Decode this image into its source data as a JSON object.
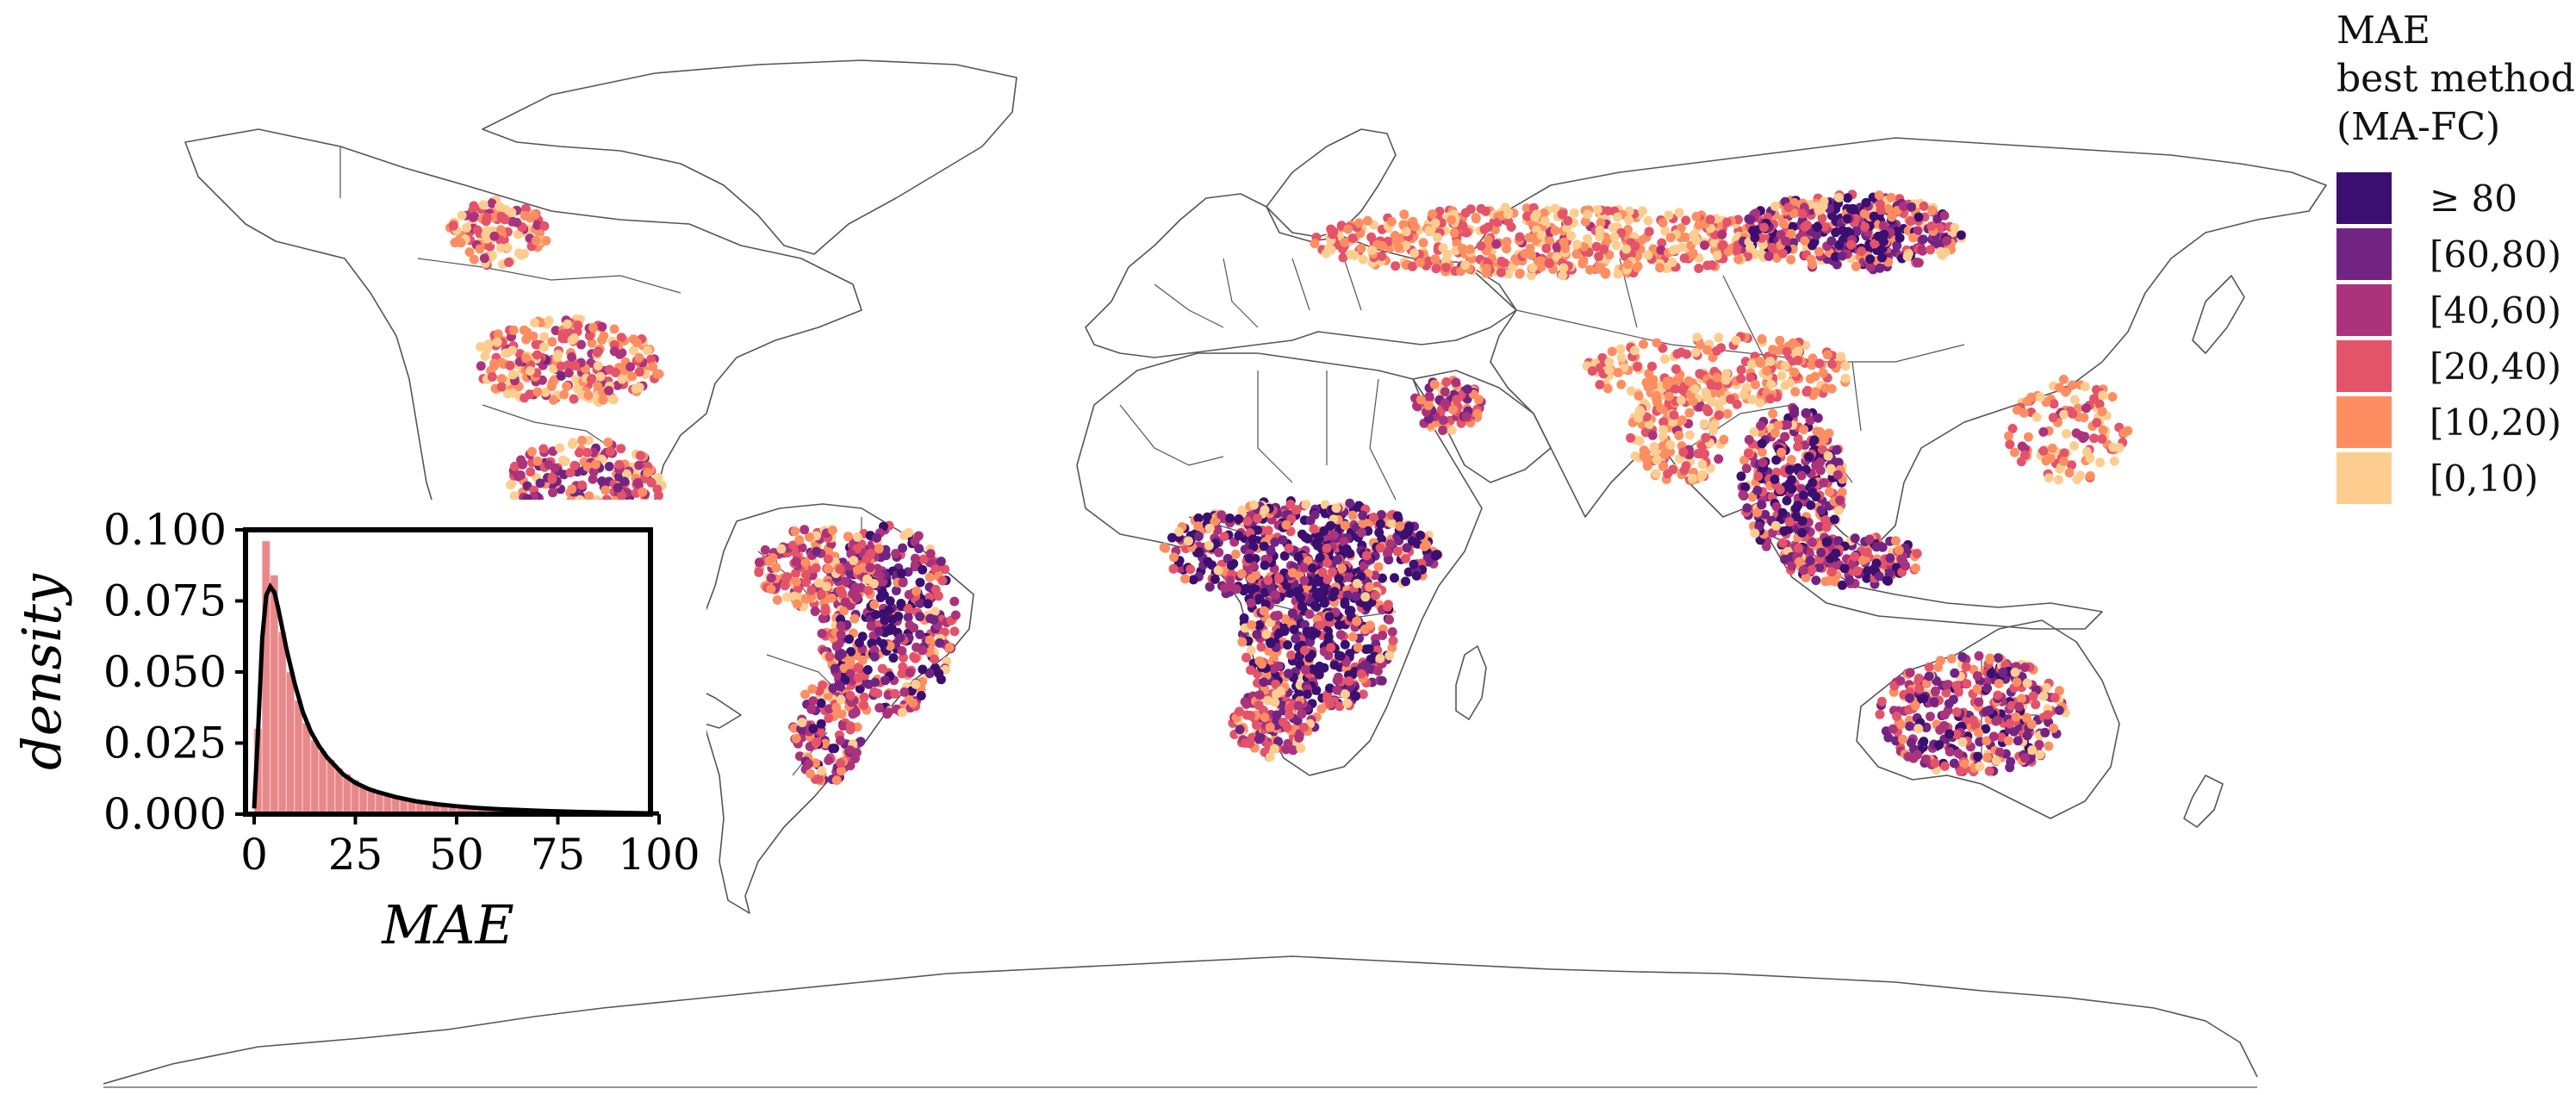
{
  "legend": {
    "title_lines": [
      "MAE",
      "best method",
      "(MA-FC)"
    ],
    "items": [
      {
        "label": "≥ 80",
        "color": "#3b0f70"
      },
      {
        "label": "[60,80)",
        "color": "#722483"
      },
      {
        "label": "[40,60)",
        "color": "#ab337c"
      },
      {
        "label": "[20,40)",
        "color": "#e3536a"
      },
      {
        "label": "[10,20)",
        "color": "#fc8e62"
      },
      {
        "label": "[0,10)",
        "color": "#fdcd90"
      }
    ]
  },
  "chart_data": {
    "type": "histogram",
    "xlabel": "MAE",
    "ylabel": "density",
    "xlim": [
      0,
      100
    ],
    "ylim": [
      0,
      0.1
    ],
    "x_ticks": [
      "0",
      "25",
      "50",
      "75",
      "100"
    ],
    "y_ticks": [
      "0.000",
      "0.025",
      "0.050",
      "0.075",
      "0.100"
    ],
    "bar_color": "#e8888b",
    "line_color": "#000000",
    "bins": {
      "width": 2,
      "starts": [
        0,
        2,
        4,
        6,
        8,
        10,
        12,
        14,
        16,
        18,
        20,
        22,
        24,
        26,
        28,
        30,
        32,
        34,
        36,
        38,
        40,
        42,
        44,
        46,
        48,
        50,
        55,
        60,
        65,
        70,
        75,
        80,
        85,
        90,
        95
      ],
      "density": [
        0.03,
        0.096,
        0.084,
        0.064,
        0.05,
        0.04,
        0.032,
        0.026,
        0.022,
        0.019,
        0.016,
        0.014,
        0.012,
        0.01,
        0.009,
        0.008,
        0.007,
        0.006,
        0.005,
        0.0045,
        0.004,
        0.0035,
        0.003,
        0.0028,
        0.0025,
        0.002,
        0.0016,
        0.0012,
        0.001,
        0.0008,
        0.0007,
        0.0005,
        0.0004,
        0.0003,
        0.0002
      ]
    },
    "kde": {
      "x": [
        0,
        1,
        2,
        3,
        4,
        5,
        6,
        7,
        8,
        10,
        12,
        14,
        16,
        18,
        20,
        22,
        25,
        28,
        30,
        35,
        40,
        45,
        50,
        55,
        60,
        70,
        80,
        90,
        100
      ],
      "y": [
        0.002,
        0.03,
        0.062,
        0.077,
        0.08,
        0.078,
        0.072,
        0.065,
        0.058,
        0.046,
        0.036,
        0.029,
        0.024,
        0.02,
        0.017,
        0.014,
        0.011,
        0.009,
        0.008,
        0.006,
        0.0045,
        0.0035,
        0.0028,
        0.0022,
        0.0018,
        0.0012,
        0.0008,
        0.0005,
        0.0002
      ]
    }
  }
}
